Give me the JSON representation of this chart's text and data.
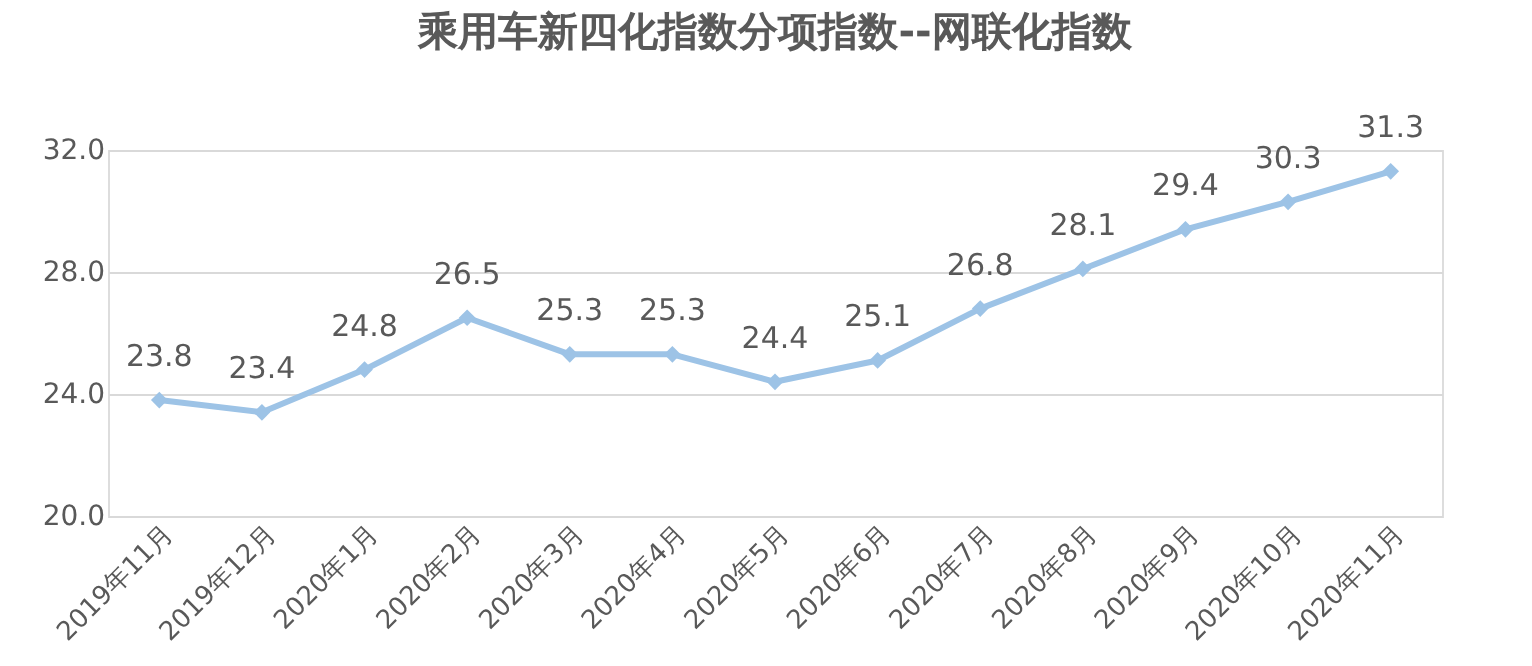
{
  "chart_data": {
    "type": "line",
    "title": "乘用车新四化指数分项指数--网联化指数",
    "categories": [
      "2019年11月",
      "2019年12月",
      "2020年1月",
      "2020年2月",
      "2020年3月",
      "2020年4月",
      "2020年5月",
      "2020年6月",
      "2020年7月",
      "2020年8月",
      "2020年9月",
      "2020年10月",
      "2020年11月"
    ],
    "series": [
      {
        "color": "#9dc3e6",
        "values": [
          23.8,
          23.4,
          24.8,
          26.5,
          25.3,
          25.3,
          24.4,
          25.1,
          26.8,
          28.1,
          29.4,
          30.3,
          31.3
        ]
      }
    ],
    "ylim": [
      20,
      32
    ],
    "yticks": [
      {
        "value": 20,
        "label": "20.0"
      },
      {
        "value": 24,
        "label": "24.0"
      },
      {
        "value": 28,
        "label": "28.0"
      },
      {
        "value": 32,
        "label": "32.0"
      }
    ],
    "grid": "y",
    "marker": "diamond",
    "line_style": "solid",
    "data_labels": true
  }
}
